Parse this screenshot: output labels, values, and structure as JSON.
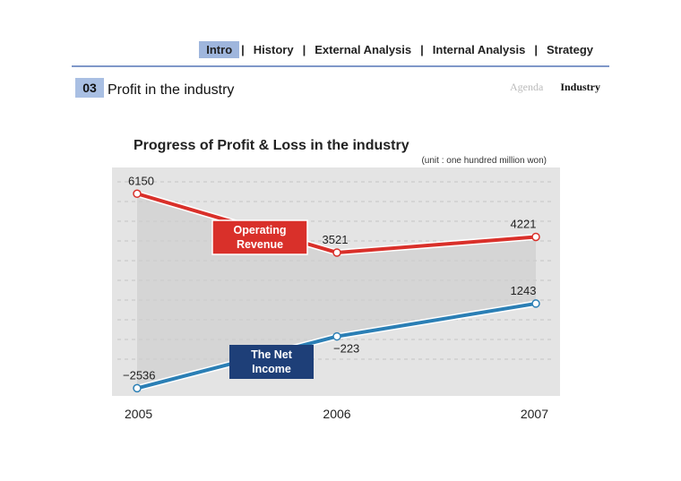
{
  "nav": {
    "items": [
      {
        "label": "Intro",
        "active": true
      },
      {
        "label": "History",
        "active": false
      },
      {
        "label": "External Analysis",
        "active": false
      },
      {
        "label": "Internal Analysis",
        "active": false
      },
      {
        "label": "Strategy",
        "active": false
      }
    ],
    "separator": "|"
  },
  "slide": {
    "number": "03",
    "title": "Profit in the industry",
    "breadcrumb_agenda": "Agenda",
    "breadcrumb_current": "Industry"
  },
  "colors": {
    "accent": "#9fb6dd",
    "revenue": "#d9302a",
    "income": "#2b7fb5",
    "income_label_bg": "#1e3f78",
    "plot_bg": "#e4e4e4"
  },
  "chart_data": {
    "type": "line",
    "title": "Progress of Profit & Loss in the industry",
    "subtitle": "(unit : one hundred million won)",
    "categories": [
      "2005",
      "2006",
      "2007"
    ],
    "ylim": [
      -3000,
      7000
    ],
    "grid": true,
    "series": [
      {
        "name": "Operating Revenue",
        "values": [
          6150,
          3521,
          4221
        ]
      },
      {
        "name": "The Net Income",
        "values": [
          -2536,
          -223,
          1243
        ]
      }
    ],
    "data_labels": [
      [
        "6150",
        "3521",
        "4221"
      ],
      [
        "−2536",
        "−223",
        "1243"
      ]
    ]
  }
}
